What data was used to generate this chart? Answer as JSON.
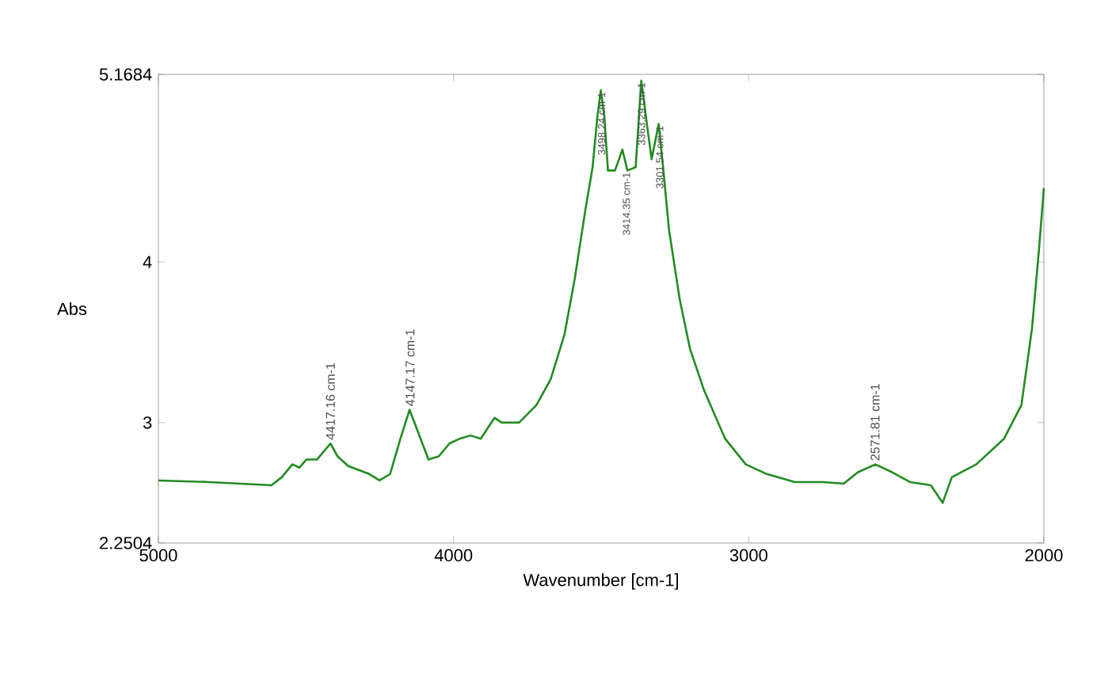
{
  "chart_data": {
    "type": "line",
    "xlabel": "Wavenumber [cm-1]",
    "ylabel": "Abs",
    "xlim": [
      5000,
      2000
    ],
    "ylim": [
      2.2504,
      5.1684
    ],
    "xticks": [
      5000,
      4000,
      3000,
      2000
    ],
    "yticks": [
      2.2504,
      3,
      4,
      5.1684
    ],
    "grid": false,
    "marker": "none",
    "line_style": "solid",
    "series": [
      {
        "color": "#228b22",
        "x": [
          5000,
          4830,
          4617,
          4582,
          4546,
          4522,
          4499,
          4463,
          4440,
          4417,
          4393,
          4357,
          4286,
          4251,
          4215,
          4180,
          4149,
          4120,
          4085,
          4050,
          4014,
          3979,
          3943,
          3908,
          3861,
          3837,
          3778,
          3719,
          3671,
          3624,
          3589,
          3553,
          3529,
          3513,
          3501,
          3489,
          3477,
          3453,
          3428,
          3411,
          3383,
          3364,
          3345,
          3329,
          3305,
          3288,
          3270,
          3234,
          3199,
          3151,
          3080,
          3010,
          2939,
          2844,
          2749,
          2678,
          2631,
          2571,
          2513,
          2454,
          2383,
          2343,
          2312,
          2229,
          2135,
          2076,
          2040,
          2017,
          2000
        ],
        "values": [
          2.64,
          2.63,
          2.61,
          2.66,
          2.74,
          2.72,
          2.77,
          2.77,
          2.82,
          2.87,
          2.79,
          2.73,
          2.68,
          2.64,
          2.68,
          2.9,
          3.08,
          2.94,
          2.77,
          2.79,
          2.87,
          2.9,
          2.92,
          2.9,
          3.03,
          3.0,
          3.0,
          3.11,
          3.27,
          3.55,
          3.9,
          4.33,
          4.59,
          4.9,
          5.07,
          4.9,
          4.57,
          4.57,
          4.7,
          4.57,
          4.59,
          5.13,
          4.86,
          4.64,
          4.86,
          4.55,
          4.2,
          3.77,
          3.46,
          3.2,
          2.9,
          2.74,
          2.68,
          2.63,
          2.63,
          2.62,
          2.69,
          2.74,
          2.69,
          2.63,
          2.61,
          2.5,
          2.66,
          2.74,
          2.9,
          3.11,
          3.59,
          4.07,
          4.46
        ]
      }
    ],
    "annotations": [
      {
        "text": "4417.16 cm-1",
        "x": 4417.16,
        "y": 2.87
      },
      {
        "text": "4147.17 cm-1",
        "x": 4147.17,
        "y": 3.08
      },
      {
        "text": "3498.24 cm-1",
        "x": 3498.24,
        "y": 5.07
      },
      {
        "text": "3414.35 cm-1",
        "x": 3414.35,
        "y": 4.57
      },
      {
        "text": "3363.29 cm-1",
        "x": 3363.29,
        "y": 5.13
      },
      {
        "text": "3301.54 cm-1",
        "x": 3301.54,
        "y": 4.86
      },
      {
        "text": "2571.81 cm-1",
        "x": 2571.81,
        "y": 2.74
      }
    ]
  }
}
